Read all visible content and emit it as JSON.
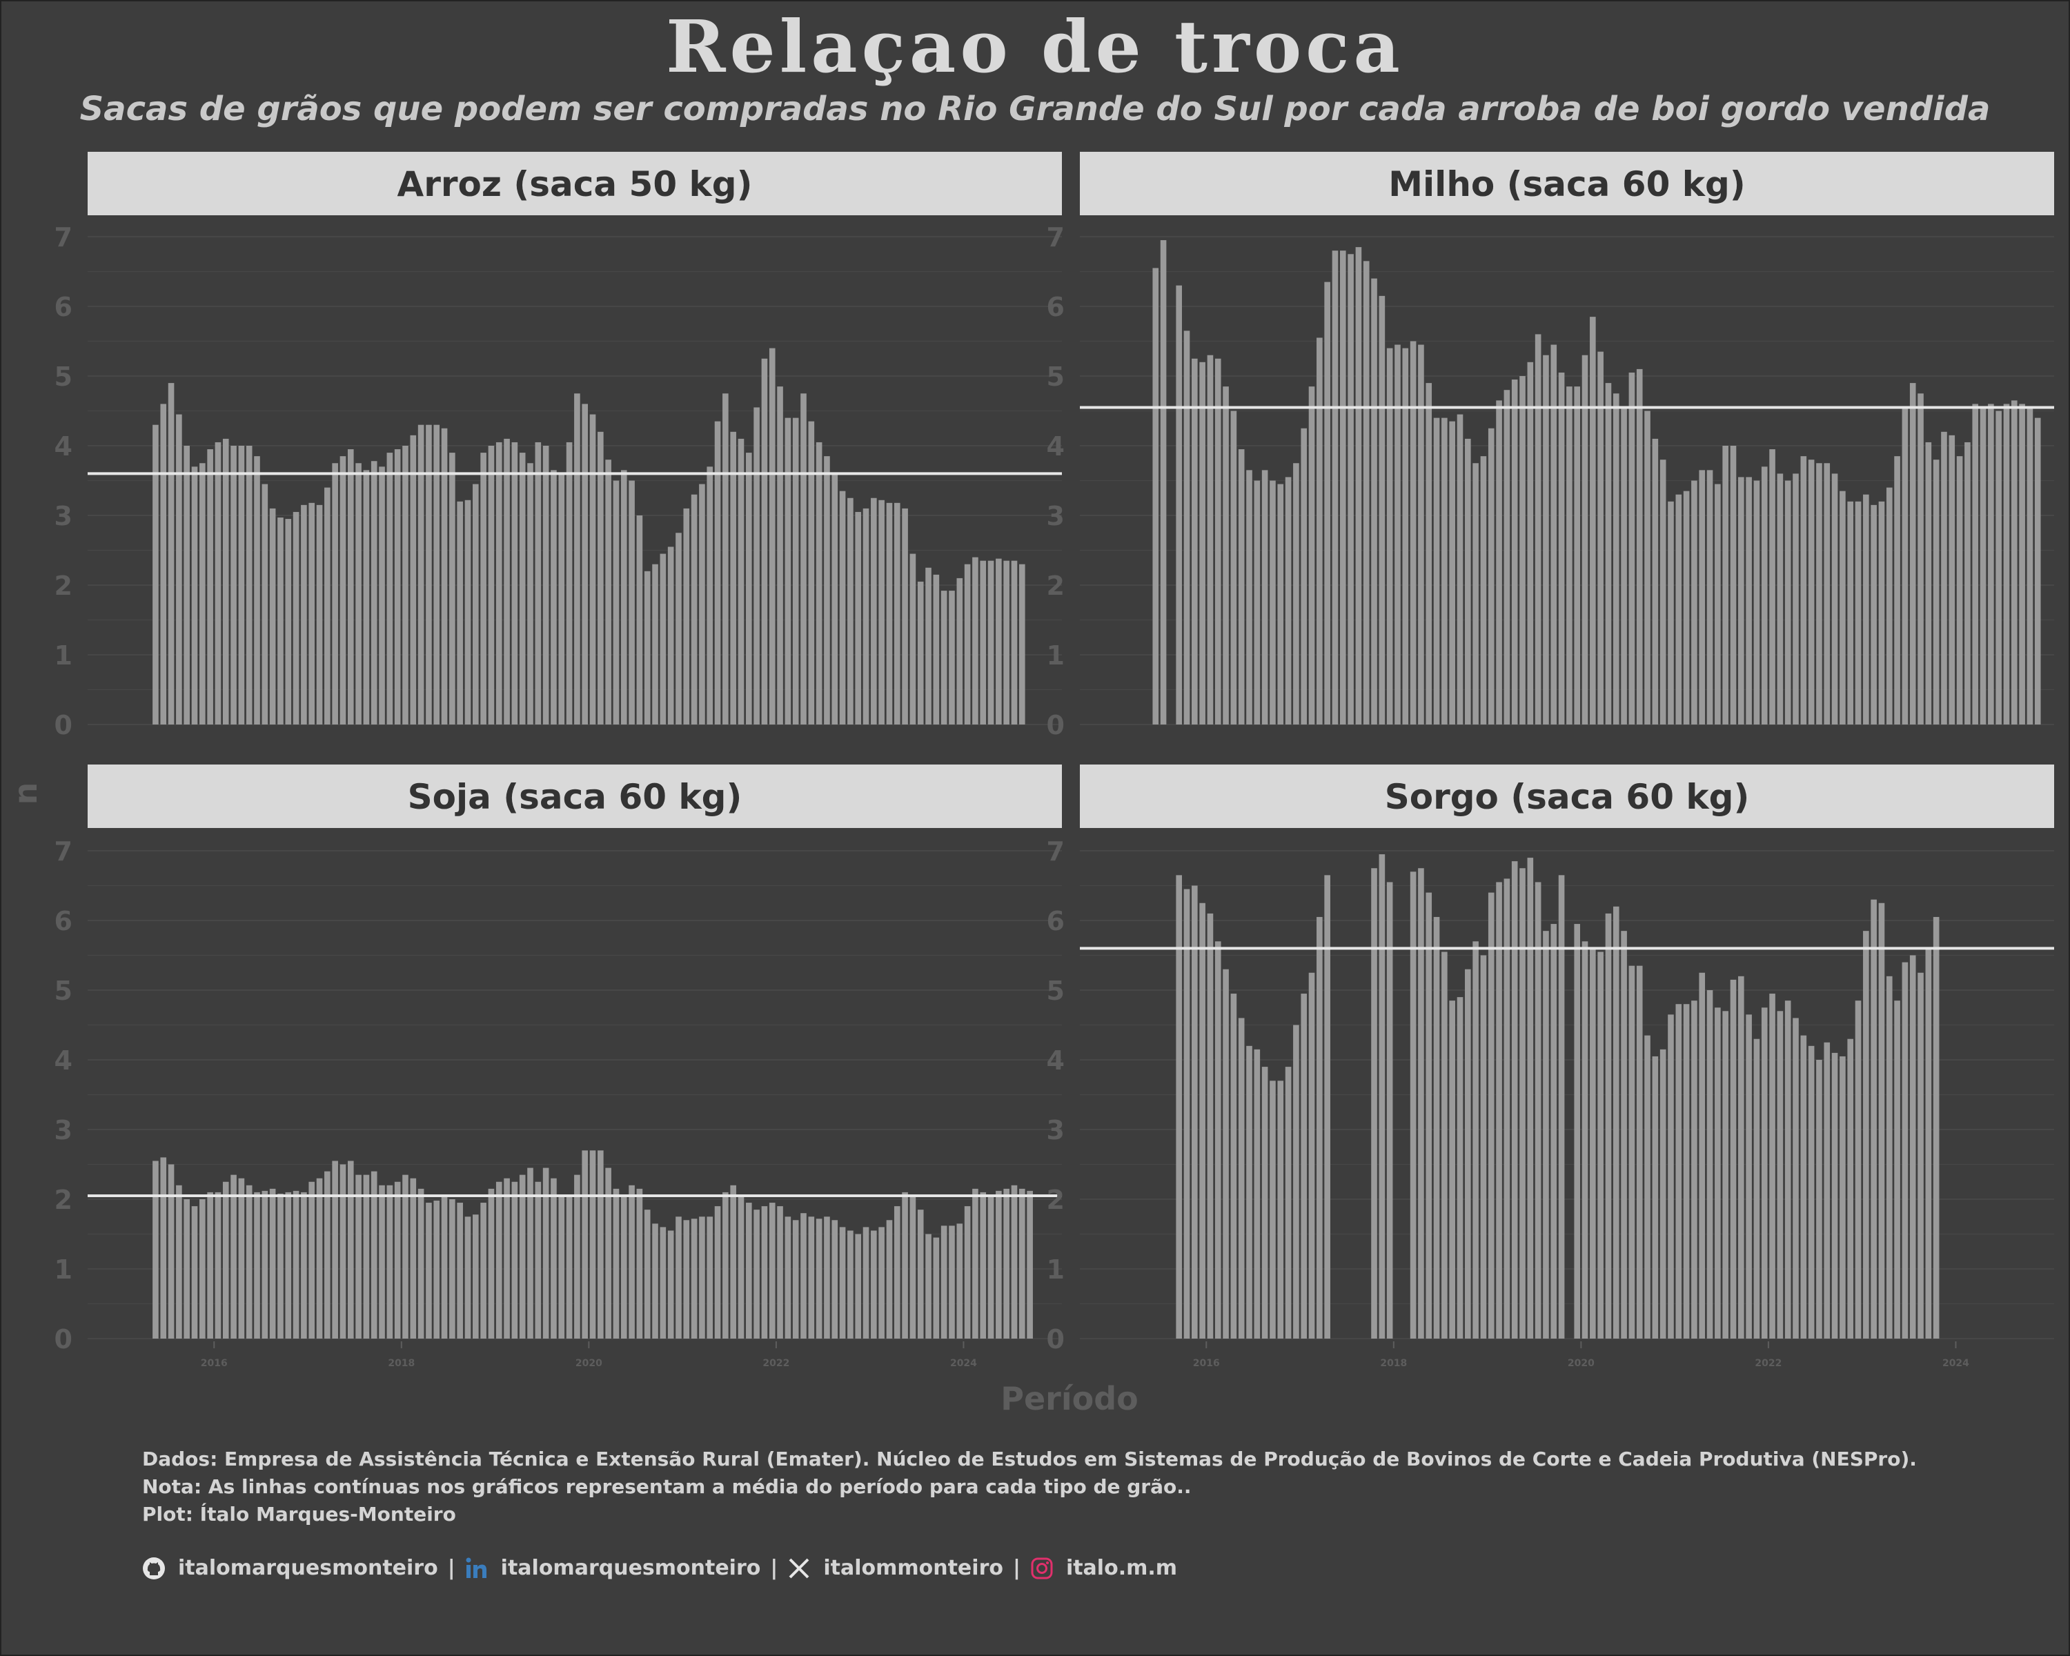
{
  "title": "Relaçao de troca",
  "subtitle": "Sacas de grãos que podem ser compradas no Rio Grande do Sul por cada arroba de boi gordo vendida",
  "ylabel": "n",
  "xlabel": "Período",
  "caption": {
    "line1": "Dados: Empresa de Assistência Técnica e Extensão Rural (Emater). Núcleo de Estudos em Sistemas de Produção de Bovinos de Corte e Cadeia Produtiva (NESPro).",
    "line2": "Nota: As linhas contínuas nos gráficos representam a média do período para cada tipo de grão..",
    "line3": "Plot: Ítalo Marques-Monteiro"
  },
  "social": {
    "github": "italomarquesmonteiro",
    "linkedin": "italomarquesmonteiro",
    "x": "italommonteiro",
    "instagram": "italo.m.m",
    "separator": "|"
  },
  "colors": {
    "background": "#3d3d3d",
    "bar": "#9a9a9a",
    "strip": "#d9d9d9",
    "mean_line": "#e6e6e6",
    "grid": "#474747",
    "axis_text": "#5d5d5d",
    "linkedin": "#3a7dbd",
    "instagram": "#e1306c"
  },
  "chart_data": [
    {
      "type": "bar",
      "panel": "Arroz (saca 50 kg)",
      "x_start": "2015-05",
      "x_frequency": "monthly",
      "ylim": [
        0,
        7
      ],
      "yticks": [
        0,
        1,
        2,
        3,
        4,
        5,
        6,
        7
      ],
      "xticks": [
        "2016",
        "2018",
        "2020",
        "2022",
        "2024"
      ],
      "mean": 3.6,
      "values": [
        4.3,
        4.6,
        4.9,
        4.45,
        4.0,
        3.7,
        3.75,
        3.95,
        4.05,
        4.1,
        4.0,
        4.0,
        4.0,
        3.85,
        3.45,
        3.1,
        2.97,
        2.95,
        3.05,
        3.15,
        3.18,
        3.15,
        3.4,
        3.75,
        3.85,
        3.95,
        3.75,
        3.65,
        3.78,
        3.7,
        3.9,
        3.95,
        4.0,
        4.15,
        4.3,
        4.3,
        4.3,
        4.25,
        3.9,
        3.2,
        3.22,
        3.45,
        3.9,
        4.0,
        4.05,
        4.1,
        4.05,
        3.9,
        3.75,
        4.05,
        4.0,
        3.65,
        3.6,
        4.05,
        4.75,
        4.6,
        4.45,
        4.2,
        3.8,
        3.5,
        3.65,
        3.5,
        3.0,
        2.2,
        2.3,
        2.45,
        2.55,
        2.75,
        3.1,
        3.3,
        3.45,
        3.7,
        4.35,
        4.75,
        4.2,
        4.1,
        3.9,
        4.55,
        5.25,
        5.4,
        4.85,
        4.4,
        4.4,
        4.75,
        4.35,
        4.05,
        3.85,
        3.6,
        3.35,
        3.25,
        3.05,
        3.1,
        3.25,
        3.22,
        3.18,
        3.18,
        3.1,
        2.45,
        2.05,
        2.25,
        2.15,
        1.92,
        1.92,
        2.1,
        2.3,
        2.4,
        2.35,
        2.35,
        2.38,
        2.35,
        2.35,
        2.3
      ]
    },
    {
      "type": "bar",
      "panel": "Milho (saca 60 kg)",
      "x_start": "2015-06",
      "x_frequency": "monthly",
      "ylim": [
        0,
        7
      ],
      "yticks": [
        0,
        1,
        2,
        3,
        4,
        5,
        6,
        7
      ],
      "xticks": [
        "2016",
        "2018",
        "2020",
        "2022",
        "2024"
      ],
      "mean": 4.55,
      "values": [
        6.55,
        6.95,
        null,
        6.3,
        5.65,
        5.25,
        5.2,
        5.3,
        5.25,
        4.85,
        4.5,
        3.95,
        3.65,
        3.5,
        3.65,
        3.5,
        3.45,
        3.55,
        3.75,
        4.25,
        4.85,
        5.55,
        6.35,
        6.8,
        6.8,
        6.75,
        6.85,
        6.65,
        6.4,
        6.15,
        5.4,
        5.45,
        5.4,
        5.5,
        5.45,
        4.9,
        4.4,
        4.4,
        4.35,
        4.45,
        4.1,
        3.75,
        3.85,
        4.25,
        4.65,
        4.8,
        4.95,
        5.0,
        5.2,
        5.6,
        5.3,
        5.45,
        5.05,
        4.85,
        4.85,
        5.3,
        5.85,
        5.35,
        4.9,
        4.75,
        4.55,
        5.05,
        5.1,
        4.5,
        4.1,
        3.8,
        3.2,
        3.3,
        3.35,
        3.5,
        3.65,
        3.65,
        3.45,
        4.0,
        4.0,
        3.55,
        3.55,
        3.5,
        3.7,
        3.95,
        3.6,
        3.5,
        3.6,
        3.85,
        3.8,
        3.75,
        3.75,
        3.6,
        3.35,
        3.2,
        3.2,
        3.3,
        3.15,
        3.2,
        3.4,
        3.85,
        4.55,
        4.9,
        4.75,
        4.05,
        3.8,
        4.2,
        4.15,
        3.85,
        4.05,
        4.6,
        4.55,
        4.6,
        4.5,
        4.6,
        4.65,
        4.6,
        4.55,
        4.4
      ]
    },
    {
      "type": "bar",
      "panel": "Soja (saca 60 kg)",
      "x_start": "2015-05",
      "x_frequency": "monthly",
      "ylim": [
        0,
        7
      ],
      "yticks": [
        0,
        1,
        2,
        3,
        4,
        5,
        6,
        7
      ],
      "xticks": [
        "2016",
        "2018",
        "2020",
        "2022",
        "2024"
      ],
      "mean": 2.05,
      "values": [
        2.55,
        2.6,
        2.5,
        2.2,
        2.0,
        1.9,
        2.0,
        2.1,
        2.1,
        2.25,
        2.35,
        2.3,
        2.2,
        2.1,
        2.12,
        2.15,
        2.08,
        2.1,
        2.12,
        2.1,
        2.25,
        2.3,
        2.4,
        2.55,
        2.5,
        2.55,
        2.35,
        2.35,
        2.4,
        2.2,
        2.2,
        2.25,
        2.35,
        2.3,
        2.15,
        1.95,
        1.98,
        2.05,
        2.0,
        1.95,
        1.75,
        1.78,
        1.95,
        2.15,
        2.25,
        2.3,
        2.25,
        2.35,
        2.45,
        2.25,
        2.45,
        2.3,
        2.05,
        2.05,
        2.35,
        2.7,
        2.7,
        2.7,
        2.45,
        2.15,
        2.05,
        2.2,
        2.15,
        1.85,
        1.65,
        1.6,
        1.55,
        1.75,
        1.7,
        1.72,
        1.75,
        1.75,
        1.9,
        2.1,
        2.2,
        2.05,
        1.95,
        1.85,
        1.9,
        1.95,
        1.9,
        1.75,
        1.7,
        1.8,
        1.75,
        1.72,
        1.75,
        1.7,
        1.6,
        1.55,
        1.5,
        1.6,
        1.55,
        1.6,
        1.7,
        1.9,
        2.1,
        2.05,
        1.85,
        1.5,
        1.45,
        1.62,
        1.62,
        1.65,
        1.9,
        2.15,
        2.1,
        2.05,
        2.12,
        2.15,
        2.2,
        2.15,
        2.12
      ]
    },
    {
      "type": "bar",
      "panel": "Sorgo (saca 60 kg)",
      "x_start": "2015-09",
      "x_frequency": "monthly",
      "ylim": [
        0,
        7
      ],
      "yticks": [
        0,
        1,
        2,
        3,
        4,
        5,
        6,
        7
      ],
      "xticks": [
        "2016",
        "2018",
        "2020",
        "2022",
        "2024"
      ],
      "mean": 5.6,
      "values": [
        6.65,
        6.45,
        6.5,
        6.25,
        6.1,
        5.7,
        5.3,
        4.95,
        4.6,
        4.2,
        4.15,
        3.9,
        3.7,
        3.7,
        3.9,
        4.5,
        4.95,
        5.25,
        6.05,
        6.65,
        null,
        null,
        null,
        null,
        null,
        6.75,
        6.95,
        6.55,
        null,
        null,
        6.7,
        6.75,
        6.4,
        6.05,
        5.55,
        4.85,
        4.9,
        5.3,
        5.7,
        5.5,
        6.4,
        6.55,
        6.6,
        6.85,
        6.75,
        6.9,
        6.55,
        5.85,
        5.95,
        6.65,
        null,
        5.95,
        5.7,
        5.6,
        5.55,
        6.1,
        6.2,
        5.85,
        5.35,
        5.35,
        4.35,
        4.05,
        4.15,
        4.65,
        4.8,
        4.8,
        4.85,
        5.25,
        5.0,
        4.75,
        4.7,
        5.15,
        5.2,
        4.65,
        4.3,
        4.75,
        4.95,
        4.7,
        4.85,
        4.6,
        4.35,
        4.2,
        4.0,
        4.25,
        4.1,
        4.05,
        4.3,
        4.85,
        5.85,
        6.3,
        6.25,
        5.2,
        4.85,
        5.4,
        5.5,
        5.25,
        5.6,
        6.05
      ]
    }
  ]
}
